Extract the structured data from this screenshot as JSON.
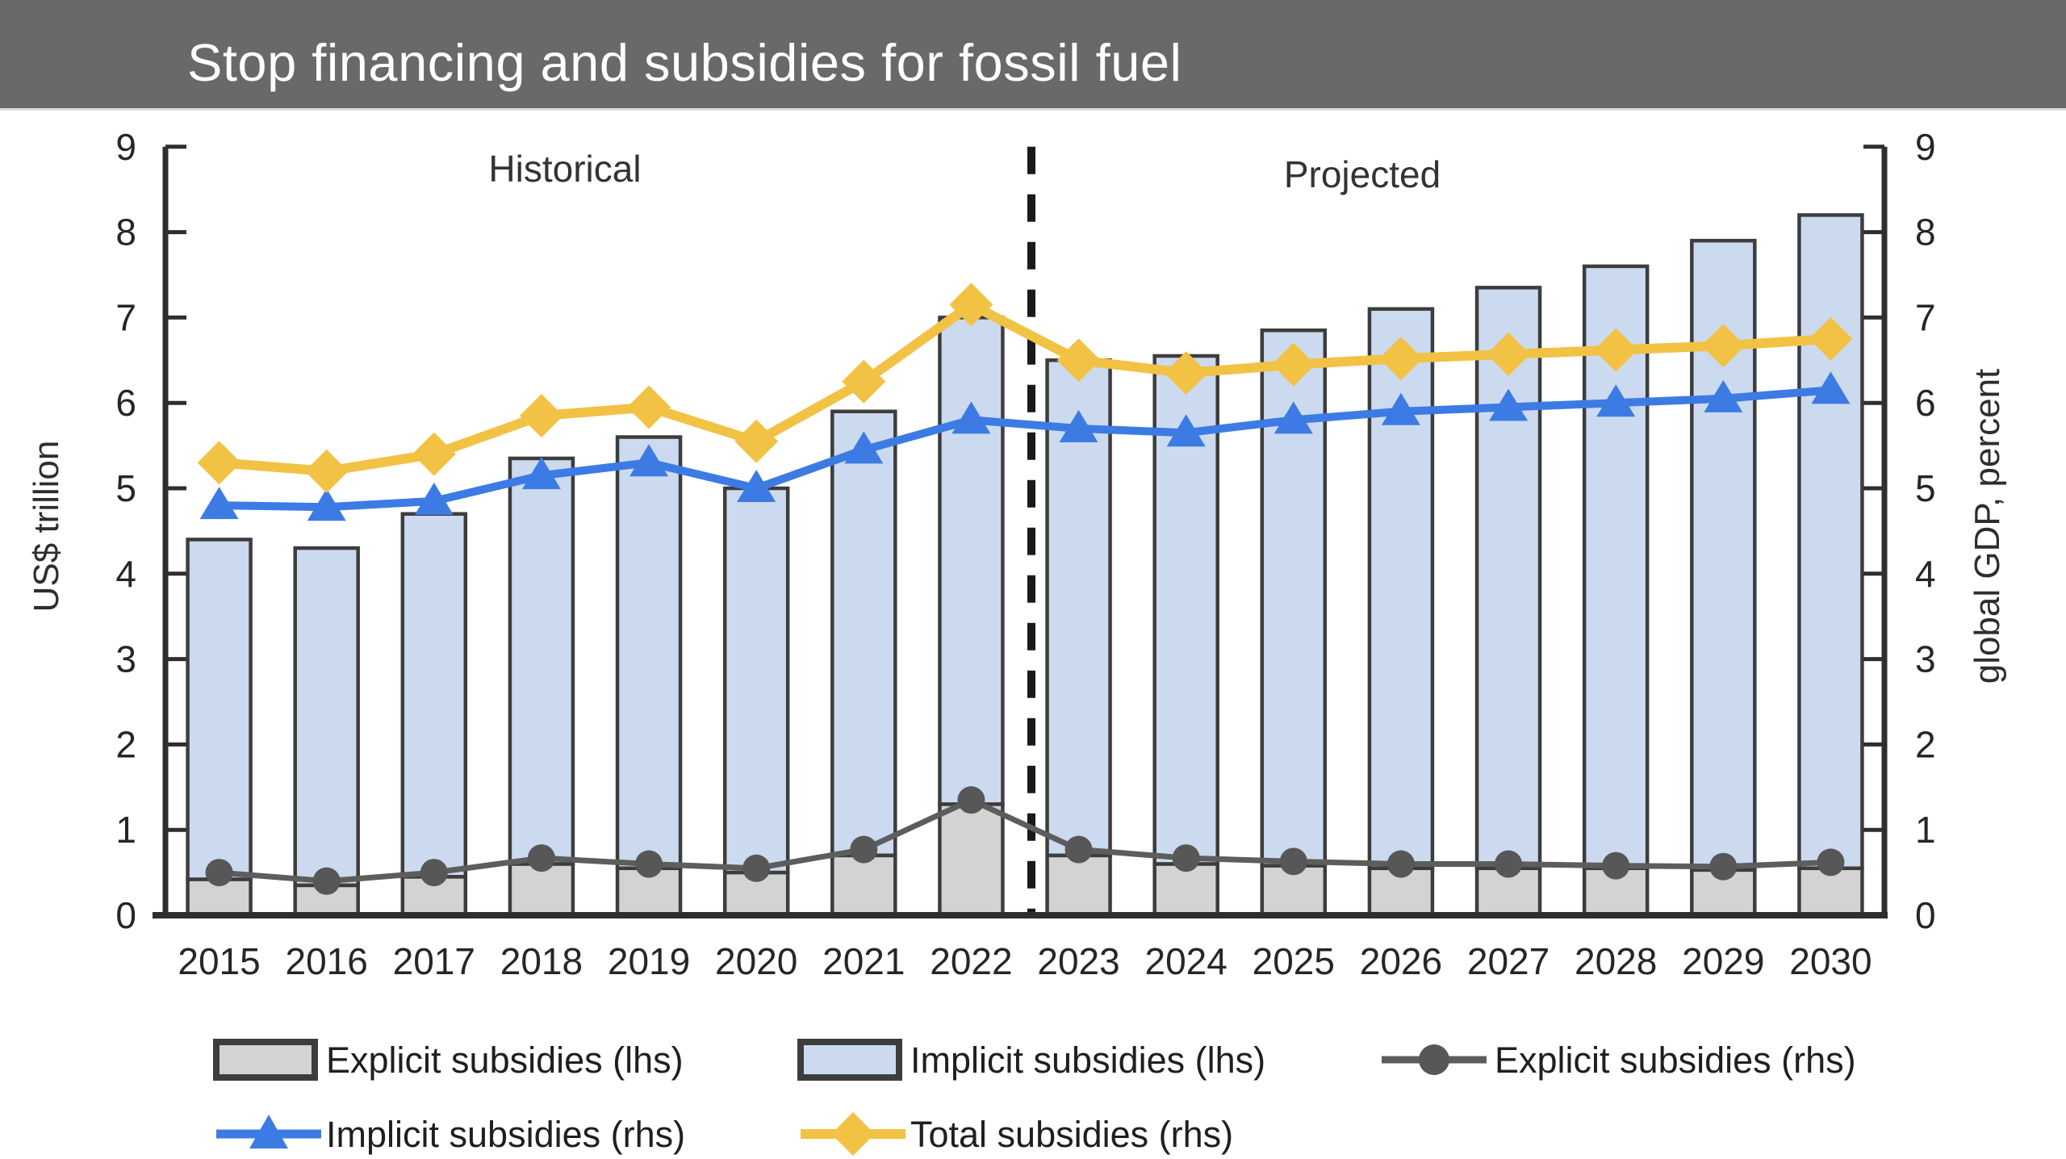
{
  "header": {
    "title": "Stop financing and subsidies for fossil fuel"
  },
  "chart_data": {
    "type": "bar+line",
    "categories": [
      "2015",
      "2016",
      "2017",
      "2018",
      "2019",
      "2020",
      "2021",
      "2022",
      "2023",
      "2024",
      "2025",
      "2026",
      "2027",
      "2028",
      "2029",
      "2030"
    ],
    "series": [
      {
        "name": "Explicit subsidies (lhs)",
        "type": "bar",
        "axis": "left",
        "stack": "subsidies",
        "values": [
          0.42,
          0.35,
          0.45,
          0.6,
          0.55,
          0.5,
          0.7,
          1.3,
          0.7,
          0.6,
          0.58,
          0.55,
          0.55,
          0.55,
          0.53,
          0.55
        ]
      },
      {
        "name": "Implicit subsidies (lhs)",
        "type": "bar",
        "axis": "left",
        "stack": "subsidies",
        "values": [
          3.98,
          3.95,
          4.25,
          4.75,
          5.05,
          4.5,
          5.2,
          5.7,
          5.8,
          5.95,
          6.27,
          6.55,
          6.8,
          7.05,
          7.37,
          7.65
        ]
      },
      {
        "name": "Explicit subsidies (rhs)",
        "type": "line",
        "axis": "right",
        "marker": "circle",
        "values": [
          0.5,
          0.4,
          0.5,
          0.67,
          0.6,
          0.55,
          0.77,
          1.35,
          0.77,
          0.67,
          0.63,
          0.6,
          0.6,
          0.58,
          0.57,
          0.62
        ]
      },
      {
        "name": "Implicit subsidies (rhs)",
        "type": "line",
        "axis": "right",
        "marker": "triangle",
        "values": [
          4.8,
          4.78,
          4.85,
          5.15,
          5.3,
          5.0,
          5.45,
          5.8,
          5.7,
          5.65,
          5.8,
          5.9,
          5.95,
          6.0,
          6.05,
          6.15
        ]
      },
      {
        "name": "Total subsidies (rhs)",
        "type": "line",
        "axis": "right",
        "marker": "diamond",
        "values": [
          5.3,
          5.2,
          5.4,
          5.85,
          5.95,
          5.55,
          6.25,
          7.15,
          6.5,
          6.35,
          6.45,
          6.52,
          6.57,
          6.62,
          6.67,
          6.75
        ]
      }
    ],
    "ylabel_left": "US$ trillion",
    "ylabel_right": "global GDP, percent",
    "ylim": [
      0,
      9
    ],
    "yticks": [
      0,
      1,
      2,
      3,
      4,
      5,
      6,
      7,
      8,
      9
    ],
    "grid": false,
    "annotations": {
      "historical": "Historical",
      "projected": "Projected",
      "divider_between": [
        "2022",
        "2023"
      ]
    },
    "legend_position": "bottom"
  },
  "legend": {
    "items": [
      {
        "label": "Explicit subsidies (lhs)",
        "key": "bar-explicit"
      },
      {
        "label": "Implicit subsidies (lhs)",
        "key": "bar-implicit"
      },
      {
        "label": "Explicit subsidies (rhs)",
        "key": "line-explicit"
      },
      {
        "label": "Implicit subsidies (rhs)",
        "key": "line-implicit"
      },
      {
        "label": "Total subsidies (rhs)",
        "key": "line-total"
      }
    ]
  },
  "colors": {
    "titlebar": "#696969",
    "bar_explicit": "#d3d3d3",
    "bar_implicit": "#ccdaf0",
    "bar_border": "#3d3d3d",
    "line_explicit": "#5d5d5d",
    "line_explicit_marker": "#575757",
    "line_implicit": "#3d7be4",
    "line_total": "#f1c243",
    "dashed_divider": "#1a1a1a",
    "axis": "#2e2e2e"
  }
}
